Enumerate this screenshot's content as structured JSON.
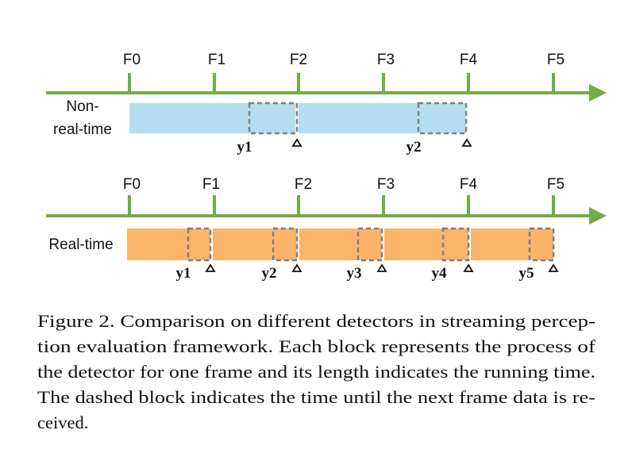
{
  "figure": {
    "rows": [
      {
        "label_lines": [
          "Non-",
          "real-time"
        ],
        "frames": [
          "F0",
          "F1",
          "F2",
          "F3",
          "F4",
          "F5"
        ],
        "outputs": [
          "y1",
          "y2"
        ]
      },
      {
        "label_lines": [
          "Real-time"
        ],
        "frames": [
          "F0",
          "F1",
          "F2",
          "F3",
          "F4",
          "F5"
        ],
        "outputs": [
          "y1",
          "y2",
          "y3",
          "y4",
          "y5"
        ]
      }
    ],
    "caption": [
      "Figure 2. Comparison on different detectors in streaming percep-",
      "tion evaluation framework.  Each block represents the process of",
      "the detector for one frame and its length indicates the running time.",
      "The dashed block indicates the time until the next frame data is re-",
      "ceived."
    ]
  }
}
